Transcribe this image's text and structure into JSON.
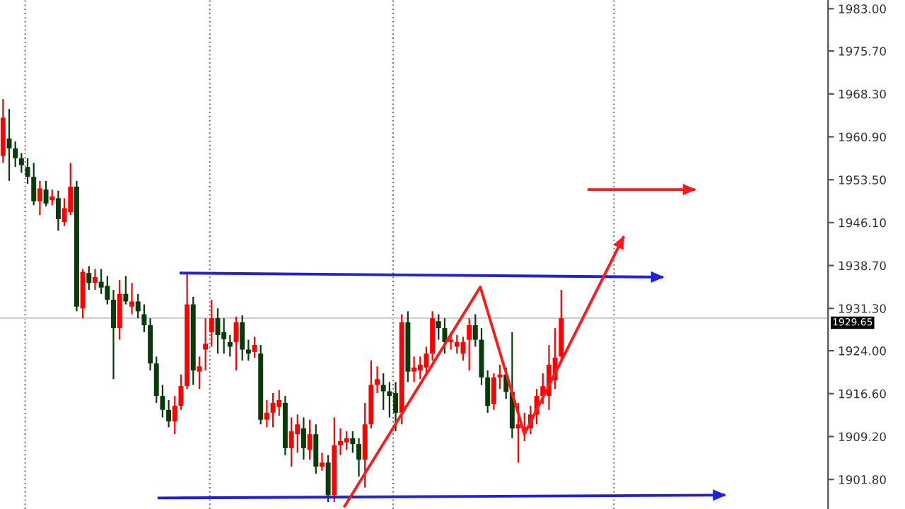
{
  "chart_data": {
    "type": "candlestick",
    "categories": [
      null,
      null,
      null,
      null,
      null,
      null,
      null,
      null,
      null,
      null,
      null,
      null,
      null,
      null,
      null,
      null,
      null,
      null,
      null,
      null,
      null,
      null,
      null,
      null,
      null,
      null,
      null,
      null,
      null,
      null,
      null,
      null,
      null,
      null,
      null,
      null,
      null,
      null,
      null,
      null,
      null,
      null,
      null,
      null,
      null,
      null,
      null,
      null,
      null,
      null,
      null,
      null,
      null,
      null,
      null,
      null,
      null,
      null,
      null,
      null,
      null,
      null,
      null,
      null,
      null,
      null,
      null,
      null,
      null,
      null,
      null,
      null,
      null,
      null,
      null,
      null,
      null,
      null,
      null,
      null,
      null,
      null,
      null,
      null,
      null,
      null,
      null,
      null,
      null,
      null,
      null,
      null,
      null,
      null,
      null,
      null,
      null,
      null,
      null,
      null,
      null,
      null,
      null,
      null,
      null,
      null,
      null,
      null,
      null,
      null,
      null,
      null,
      null,
      null,
      null,
      null,
      null,
      null,
      null,
      null,
      null,
      null,
      null,
      null,
      null,
      null,
      null,
      null,
      null,
      null,
      null,
      null,
      null,
      null,
      null
    ],
    "ohlc": [
      [
        1957.6,
        1967.4,
        1956.4,
        1964.2
      ],
      [
        1960.6,
        1965.7,
        1953.3,
        1958.9
      ],
      [
        1958.9,
        1960.1,
        1955.7,
        1957.2
      ],
      [
        1957.2,
        1958.1,
        1954.7,
        1956.0
      ],
      [
        1955.7,
        1957.2,
        1952.8,
        1954.0
      ],
      [
        1954.0,
        1956.4,
        1949.1,
        1949.8
      ],
      [
        1949.8,
        1953.3,
        1947.4,
        1952.0
      ],
      [
        1951.8,
        1953.3,
        1948.9,
        1949.4
      ],
      [
        1950.0,
        1951.8,
        1949.1,
        1950.6
      ],
      [
        1950.3,
        1951.6,
        1944.7,
        1946.7
      ],
      [
        1946.2,
        1950.3,
        1945.5,
        1948.6
      ],
      [
        1947.9,
        1956.4,
        1947.4,
        1952.3
      ],
      [
        1952.3,
        1953.3,
        1930.8,
        1931.6
      ],
      [
        1931.3,
        1938.1,
        1929.6,
        1937.6
      ],
      [
        1937.4,
        1938.6,
        1934.5,
        1935.7
      ],
      [
        1935.7,
        1938.1,
        1934.5,
        1936.7
      ],
      [
        1935.9,
        1938.1,
        1933.8,
        1934.9
      ],
      [
        1935.2,
        1936.9,
        1932.0,
        1932.8
      ],
      [
        1932.8,
        1934.5,
        1919.1,
        1927.9
      ],
      [
        1927.9,
        1936.2,
        1925.9,
        1933.8
      ],
      [
        1933.8,
        1936.9,
        1932.0,
        1932.5
      ],
      [
        1931.6,
        1935.7,
        1930.3,
        1932.5
      ],
      [
        1932.5,
        1933.8,
        1929.6,
        1930.8
      ],
      [
        1930.3,
        1932.0,
        1927.2,
        1928.4
      ],
      [
        1928.4,
        1929.6,
        1920.6,
        1921.8
      ],
      [
        1921.8,
        1923.0,
        1915.0,
        1916.2
      ],
      [
        1916.2,
        1918.1,
        1912.5,
        1913.8
      ],
      [
        1913.8,
        1915.5,
        1910.8,
        1911.8
      ],
      [
        1911.8,
        1916.2,
        1909.6,
        1914.5
      ],
      [
        1914.5,
        1919.9,
        1913.8,
        1917.9
      ],
      [
        1917.9,
        1937.4,
        1917.4,
        1932.0
      ],
      [
        1932.0,
        1933.3,
        1918.1,
        1920.6
      ],
      [
        1920.4,
        1923.0,
        1917.4,
        1921.3
      ],
      [
        1924.2,
        1929.6,
        1920.6,
        1925.2
      ],
      [
        1927.2,
        1932.8,
        1924.7,
        1929.6
      ],
      [
        1929.6,
        1931.3,
        1923.5,
        1926.7
      ],
      [
        1927.2,
        1929.6,
        1923.5,
        1926.0
      ],
      [
        1925.5,
        1926.7,
        1923.0,
        1924.7
      ],
      [
        1925.5,
        1929.9,
        1920.6,
        1928.9
      ],
      [
        1928.9,
        1930.1,
        1922.3,
        1924.2
      ],
      [
        1924.2,
        1925.9,
        1922.3,
        1923.5
      ],
      [
        1923.8,
        1926.4,
        1922.8,
        1925.0
      ],
      [
        1923.5,
        1925.0,
        1911.3,
        1912.1
      ],
      [
        1912.1,
        1915.5,
        1910.8,
        1913.3
      ],
      [
        1913.3,
        1916.7,
        1910.8,
        1915.0
      ],
      [
        1914.3,
        1917.2,
        1912.8,
        1915.5
      ],
      [
        1915.0,
        1916.2,
        1906.0,
        1907.2
      ],
      [
        1907.2,
        1912.5,
        1904.0,
        1910.1
      ],
      [
        1909.6,
        1913.0,
        1906.4,
        1911.3
      ],
      [
        1910.6,
        1912.5,
        1905.2,
        1907.2
      ],
      [
        1906.9,
        1912.1,
        1905.2,
        1909.6
      ],
      [
        1909.6,
        1911.3,
        1902.8,
        1904.0
      ],
      [
        1904.0,
        1906.4,
        1903.3,
        1904.7
      ],
      [
        1904.7,
        1906.0,
        1897.9,
        1899.1
      ],
      [
        1899.1,
        1912.5,
        1897.9,
        1907.7
      ],
      [
        1907.7,
        1910.6,
        1906.0,
        1908.4
      ],
      [
        1908.2,
        1910.1,
        1906.9,
        1908.9
      ],
      [
        1908.9,
        1910.1,
        1906.4,
        1907.9
      ],
      [
        1907.9,
        1908.9,
        1902.3,
        1905.2
      ],
      [
        1905.2,
        1915.0,
        1900.4,
        1911.3
      ],
      [
        1911.3,
        1922.3,
        1910.6,
        1918.1
      ],
      [
        1918.1,
        1921.3,
        1916.7,
        1919.1
      ],
      [
        1918.1,
        1920.1,
        1913.8,
        1917.0
      ],
      [
        1917.0,
        1918.6,
        1912.5,
        1916.2
      ],
      [
        1916.7,
        1918.6,
        1910.1,
        1913.3
      ],
      [
        1913.3,
        1930.3,
        1911.3,
        1928.9
      ],
      [
        1928.9,
        1930.8,
        1918.6,
        1920.4
      ],
      [
        1920.4,
        1923.0,
        1918.6,
        1921.1
      ],
      [
        1920.6,
        1923.0,
        1919.1,
        1921.6
      ],
      [
        1921.1,
        1924.7,
        1919.9,
        1923.5
      ],
      [
        1923.5,
        1930.8,
        1922.3,
        1929.6
      ],
      [
        1929.1,
        1930.3,
        1925.9,
        1927.9
      ],
      [
        1927.9,
        1929.6,
        1923.5,
        1925.5
      ],
      [
        1925.5,
        1927.2,
        1924.2,
        1925.9
      ],
      [
        1924.7,
        1926.7,
        1923.5,
        1925.5
      ],
      [
        1923.5,
        1926.4,
        1922.3,
        1925.5
      ],
      [
        1925.9,
        1929.6,
        1920.6,
        1928.4
      ],
      [
        1928.4,
        1930.3,
        1924.7,
        1925.9
      ],
      [
        1925.9,
        1927.9,
        1918.1,
        1919.4
      ],
      [
        1919.4,
        1920.6,
        1913.3,
        1914.5
      ],
      [
        1914.8,
        1920.1,
        1913.8,
        1919.4
      ],
      [
        1919.4,
        1921.6,
        1917.4,
        1919.9
      ],
      [
        1919.9,
        1921.1,
        1915.7,
        1916.9
      ],
      [
        1916.9,
        1927.2,
        1908.9,
        1910.6
      ],
      [
        1910.6,
        1915.0,
        1904.7,
        1911.3
      ],
      [
        1910.1,
        1913.3,
        1908.4,
        1910.8
      ],
      [
        1910.6,
        1914.5,
        1909.6,
        1913.0
      ],
      [
        1913.0,
        1917.4,
        1911.3,
        1916.2
      ],
      [
        1916.2,
        1920.1,
        1914.8,
        1917.9
      ],
      [
        1916.2,
        1925.0,
        1913.8,
        1921.6
      ],
      [
        1918.9,
        1927.9,
        1917.4,
        1922.8
      ],
      [
        1923.0,
        1934.5,
        1921.8,
        1929.6
      ],
      null,
      null,
      null,
      null,
      null,
      null,
      null,
      null,
      null,
      null,
      null,
      null,
      null,
      null,
      null,
      null,
      null,
      null,
      null,
      null,
      null,
      null,
      null,
      null,
      null,
      null,
      null,
      null,
      null,
      null,
      null,
      null,
      null,
      null,
      null,
      null,
      null,
      null,
      null,
      null,
      null,
      null,
      null
    ],
    "colors": [
      "#ff0000",
      "#0a3a0a",
      "#0a3a0a",
      "#0a3a0a",
      "#0a3a0a",
      "#0a3a0a",
      "#ff0000",
      "#0a3a0a",
      "#ff0000",
      "#0a3a0a",
      "#ff0000",
      "#ff0000",
      "#0a3a0a",
      "#ff0000",
      "#0a3a0a",
      "#ff0000",
      "#0a3a0a",
      "#0a3a0a",
      "#0a3a0a",
      "#ff0000",
      "#0a3a0a",
      "#ff0000",
      "#0a3a0a",
      "#0a3a0a",
      "#0a3a0a",
      "#0a3a0a",
      "#0a3a0a",
      "#0a3a0a",
      "#ff0000",
      "#ff0000",
      "#ff0000",
      "#0a3a0a",
      "#ff0000",
      "#ff0000",
      "#ff0000",
      "#0a3a0a",
      "#0a3a0a",
      "#0a3a0a",
      "#ff0000",
      "#0a3a0a",
      "#0a3a0a",
      "#ff0000",
      "#0a3a0a",
      "#ff0000",
      "#ff0000",
      "#ff0000",
      "#0a3a0a",
      "#ff0000",
      "#ff0000",
      "#0a3a0a",
      "#ff0000",
      "#0a3a0a",
      "#ff0000",
      "#0a3a0a",
      "#ff0000",
      "#ff0000",
      "#ff0000",
      "#0a3a0a",
      "#0a3a0a",
      "#ff0000",
      "#ff0000",
      "#ff0000",
      "#0a3a0a",
      "#0a3a0a",
      "#0a3a0a",
      "#ff0000",
      "#0a3a0a",
      "#ff0000",
      "#ff0000",
      "#ff0000",
      "#ff0000",
      "#0a3a0a",
      "#0a3a0a",
      "#ff0000",
      "#ff0000",
      "#ff0000",
      "#ff0000",
      "#0a3a0a",
      "#0a3a0a",
      "#0a3a0a",
      "#ff0000",
      "#ff0000",
      "#0a3a0a",
      "#0a3a0a",
      "#ff0000",
      "#ff0000",
      "#ff0000",
      "#ff0000",
      "#ff0000",
      "#ff0000",
      "#ff0000",
      "#ff0000",
      null,
      null,
      null,
      null,
      null,
      null,
      null,
      null,
      null,
      null,
      null,
      null,
      null,
      null,
      null,
      null,
      null,
      null,
      null,
      null,
      null,
      null,
      null,
      null,
      null,
      null,
      null,
      null,
      null,
      null,
      null,
      null,
      null,
      null,
      null,
      null,
      null,
      null,
      null,
      null,
      null,
      null,
      null
    ],
    "ylim": [
      1896.7,
      1984.5
    ],
    "yticks": [
      {
        "value": 1983.0,
        "label": "1983.00"
      },
      {
        "value": 1975.7,
        "label": "1975.70"
      },
      {
        "value": 1968.3,
        "label": "1968.30"
      },
      {
        "value": 1960.9,
        "label": "1960.90"
      },
      {
        "value": 1953.5,
        "label": "1953.50"
      },
      {
        "value": 1946.1,
        "label": "1946.10"
      },
      {
        "value": 1938.7,
        "label": "1938.70"
      },
      {
        "value": 1931.3,
        "label": "1931.30"
      },
      {
        "value": 1924.0,
        "label": "1924.00"
      },
      {
        "value": 1916.6,
        "label": "1916.60"
      },
      {
        "value": 1909.2,
        "label": "1909.20"
      },
      {
        "value": 1901.8,
        "label": "1901.80"
      }
    ],
    "ref_lines": [
      {
        "axis": "y",
        "value": 1929.65,
        "label": "1929.65",
        "color": "#d0d0d0"
      }
    ]
  }
}
